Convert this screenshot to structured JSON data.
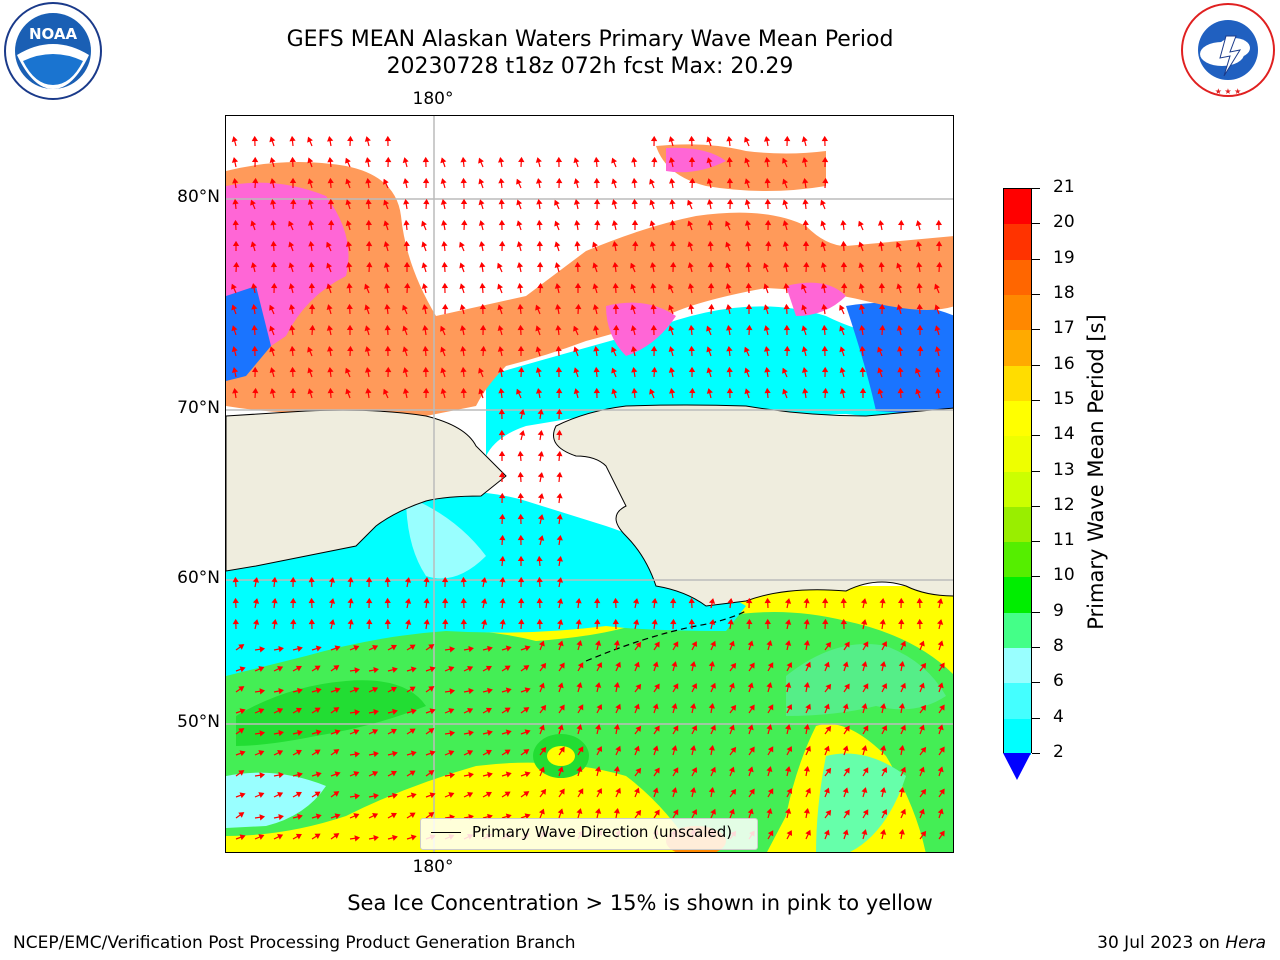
{
  "header": {
    "title": "GEFS MEAN Alaskan Waters Primary Wave Mean Period",
    "subtitle": "20230728 t18z 072h fcst   Max: 20.29"
  },
  "logos": {
    "left": "NOAA",
    "left_ring": "NATIONAL OCEANIC AND ATMOSPHERIC ADMINISTRATION",
    "left_bottom": "U.S. DEPARTMENT OF COMMERCE",
    "right_ring": "NATIONAL WEATHER SERVICE"
  },
  "map": {
    "lat_labels": [
      "80°N",
      "70°N",
      "60°N",
      "50°N"
    ],
    "lon_label_top": "180°",
    "lon_label_bottom": "180°",
    "legend": "Primary Wave Direction (unscaled)",
    "colors": {
      "land": "#efedde",
      "ice_pink": "#ff66d6",
      "ice_orange": "#ff9a5a",
      "cyan": "#00ffff",
      "green": "#33ee44",
      "yellow": "#ffff00",
      "arrow": "#ff0000"
    }
  },
  "colorbar": {
    "title": "Primary Wave Mean Period [s]",
    "ticks": [
      "21",
      "20",
      "19",
      "18",
      "17",
      "16",
      "15",
      "14",
      "13",
      "12",
      "11",
      "10",
      "9",
      "8",
      "6",
      "4",
      "2"
    ],
    "colors": [
      "#ff0000",
      "#ff3300",
      "#ff6600",
      "#ff8800",
      "#ffaa00",
      "#ffdd00",
      "#ffff00",
      "#eeff00",
      "#ccff00",
      "#99ee00",
      "#55ee00",
      "#00ee00",
      "#44ff88",
      "#99ffff",
      "#44ffff",
      "#00ffff",
      "#0077ff"
    ],
    "extend_color": "#0000ff"
  },
  "captions": {
    "sea_ice": "Sea Ice Concentration > 15% is shown in pink to yellow",
    "footer_left": "NCEP/EMC/Verification Post Processing Product Generation Branch",
    "footer_date": "30 Jul 2023 on ",
    "footer_host": "Hera"
  }
}
